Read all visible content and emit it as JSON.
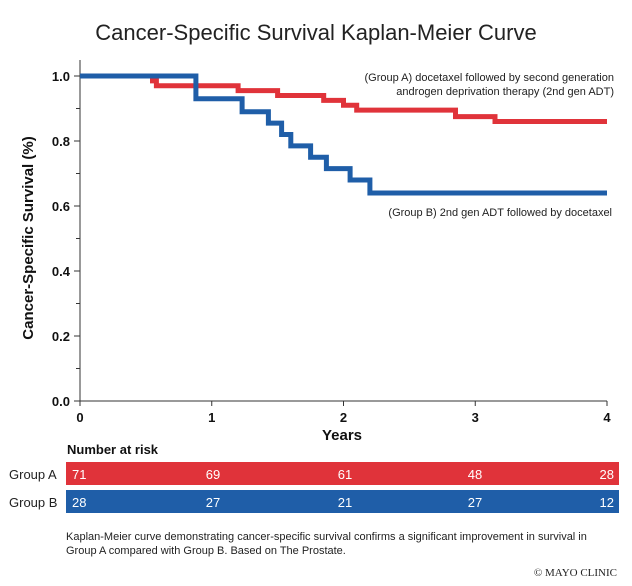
{
  "chart_data": {
    "type": "line",
    "step": true,
    "title": "Cancer-Specific Survival Kaplan-Meier Curve",
    "xlabel": "Years",
    "ylabel": "Cancer-Specific Survival (%)",
    "xlim": [
      0,
      4
    ],
    "ylim": [
      0,
      1
    ],
    "x_ticks": [
      "0",
      "1",
      "2",
      "3",
      "4"
    ],
    "y_ticks": [
      "0.0",
      "0.2",
      "0.4",
      "0.6",
      "0.8",
      "1.0"
    ],
    "series": [
      {
        "label_line1": "(Group A) docetaxel followed by second generation",
        "label_line2": "androgen deprivation therapy (2nd gen ADT)",
        "color": "#e0333a",
        "points": [
          [
            0,
            1.0
          ],
          [
            0.55,
            1.0
          ],
          [
            0.55,
            0.985
          ],
          [
            0.58,
            0.985
          ],
          [
            0.58,
            0.97
          ],
          [
            1.2,
            0.97
          ],
          [
            1.2,
            0.955
          ],
          [
            1.5,
            0.955
          ],
          [
            1.5,
            0.94
          ],
          [
            1.85,
            0.94
          ],
          [
            1.85,
            0.925
          ],
          [
            2.0,
            0.925
          ],
          [
            2.0,
            0.91
          ],
          [
            2.1,
            0.91
          ],
          [
            2.1,
            0.895
          ],
          [
            2.85,
            0.895
          ],
          [
            2.85,
            0.875
          ],
          [
            3.15,
            0.875
          ],
          [
            3.15,
            0.86
          ],
          [
            4.0,
            0.86
          ]
        ]
      },
      {
        "label_line1": "(Group B) 2nd gen ADT followed by docetaxel",
        "color": "#1f5ea8",
        "points": [
          [
            0,
            1.0
          ],
          [
            0.88,
            1.0
          ],
          [
            0.88,
            0.93
          ],
          [
            1.23,
            0.93
          ],
          [
            1.23,
            0.89
          ],
          [
            1.43,
            0.89
          ],
          [
            1.43,
            0.855
          ],
          [
            1.53,
            0.855
          ],
          [
            1.53,
            0.82
          ],
          [
            1.6,
            0.82
          ],
          [
            1.6,
            0.785
          ],
          [
            1.75,
            0.785
          ],
          [
            1.75,
            0.75
          ],
          [
            1.87,
            0.75
          ],
          [
            1.87,
            0.715
          ],
          [
            2.05,
            0.715
          ],
          [
            2.05,
            0.68
          ],
          [
            2.2,
            0.68
          ],
          [
            2.2,
            0.64
          ],
          [
            4.0,
            0.64
          ]
        ]
      }
    ],
    "grid": false
  },
  "risk_table": {
    "heading": "Number at risk",
    "groups": [
      {
        "name": "Group A",
        "color": "#e0333a",
        "values": [
          "71",
          "69",
          "61",
          "48",
          "28"
        ]
      },
      {
        "name": "Group B",
        "color": "#1f5ea8",
        "values": [
          "28",
          "27",
          "21",
          "27",
          "12"
        ]
      }
    ]
  },
  "caption_line1": "Kaplan-Meier curve demonstrating cancer-specific survival confirms a significant improvement in survival in",
  "caption_line2": "Group A compared with Group B. Based on The Prostate.",
  "copyright": "© MAYO CLINIC"
}
